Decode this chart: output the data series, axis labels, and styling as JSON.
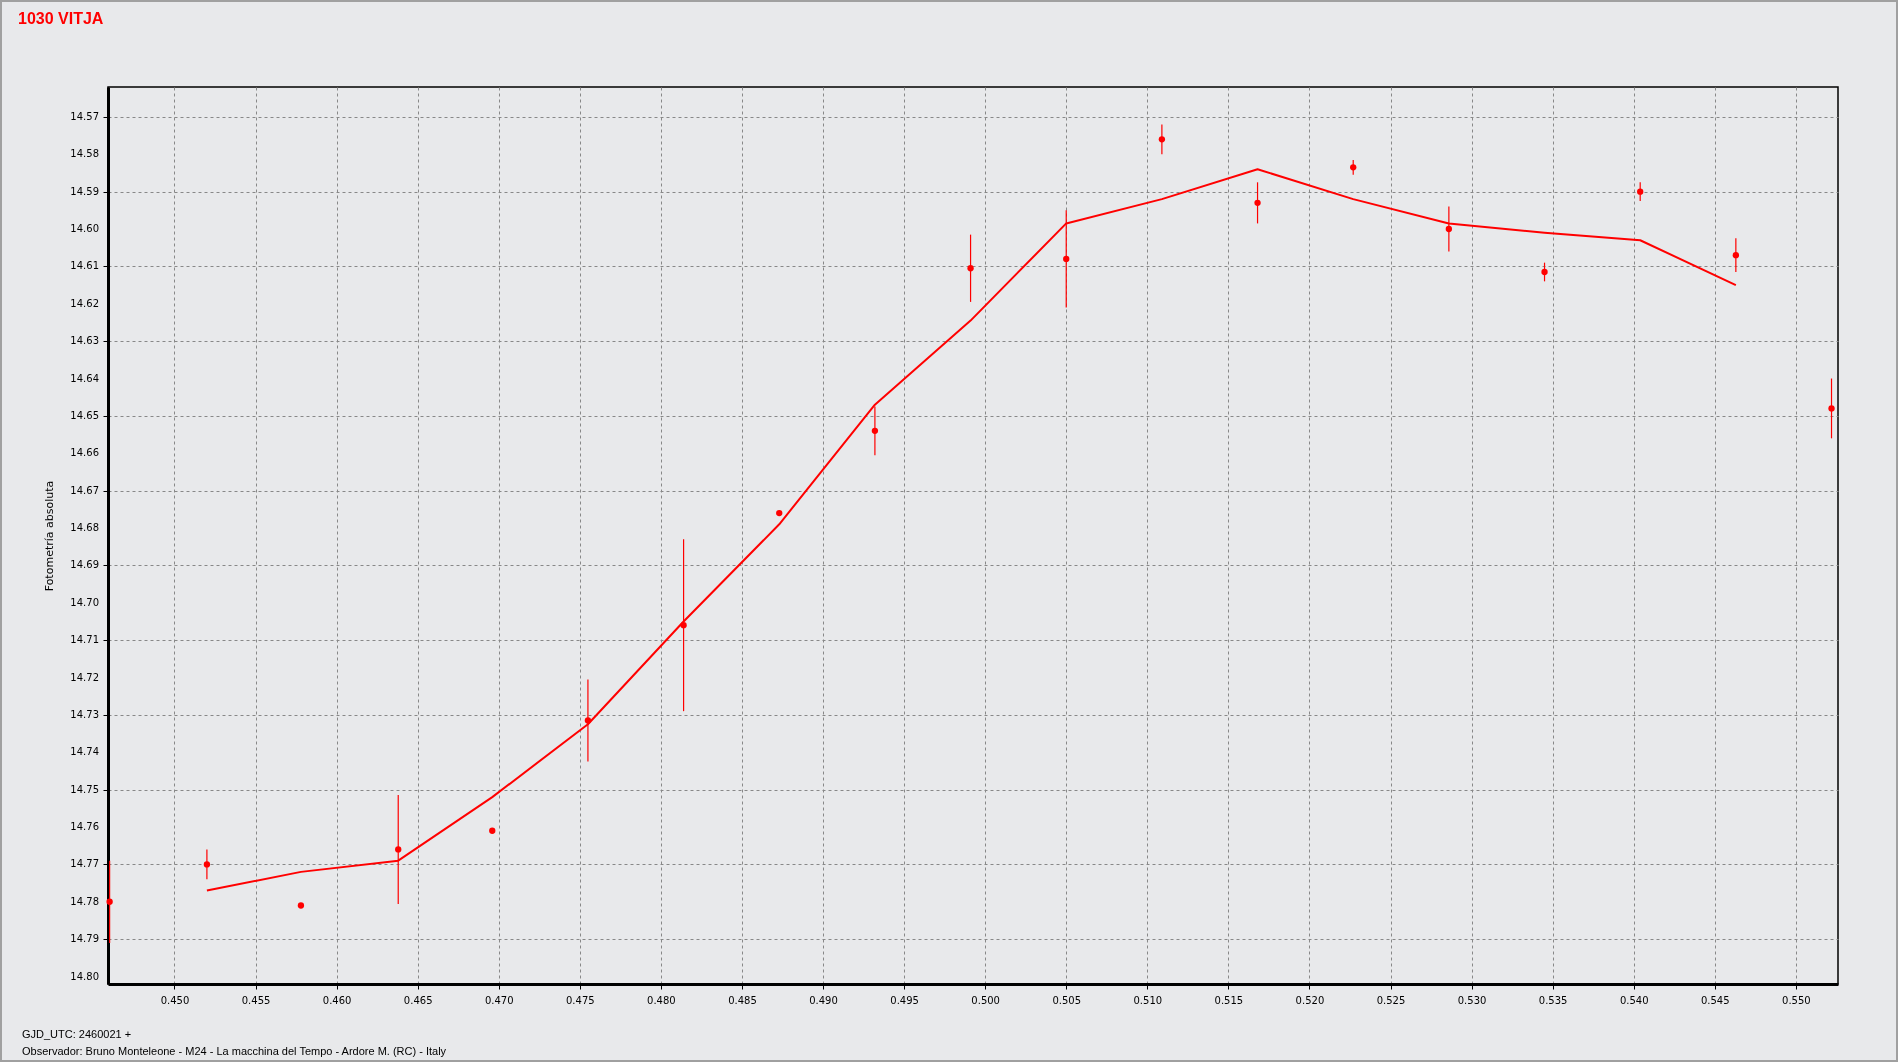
{
  "chart_data": {
    "type": "scatter",
    "title": "1030 VITJA",
    "ylabel": "Fotometría absoluta",
    "annotations": [
      "GJD_UTC: 2460021 +",
      "Observador: Bruno Monteleone - M24 - La macchina del Tempo - Ardore M. (RC) - Italy"
    ],
    "xlim": [
      0.4459,
      0.5526
    ],
    "ylim": [
      14.802,
      14.562
    ],
    "xticks": [
      {
        "value": 0.45,
        "label": "0.450"
      },
      {
        "value": 0.455,
        "label": "0.455"
      },
      {
        "value": 0.46,
        "label": "0.460"
      },
      {
        "value": 0.465,
        "label": "0.465"
      },
      {
        "value": 0.47,
        "label": "0.470"
      },
      {
        "value": 0.475,
        "label": "0.475"
      },
      {
        "value": 0.48,
        "label": "0.480"
      },
      {
        "value": 0.485,
        "label": "0.485"
      },
      {
        "value": 0.49,
        "label": "0.490"
      },
      {
        "value": 0.495,
        "label": "0.495"
      },
      {
        "value": 0.5,
        "label": "0.500"
      },
      {
        "value": 0.505,
        "label": "0.505"
      },
      {
        "value": 0.51,
        "label": "0.510"
      },
      {
        "value": 0.515,
        "label": "0.515"
      },
      {
        "value": 0.52,
        "label": "0.520"
      },
      {
        "value": 0.525,
        "label": "0.525"
      },
      {
        "value": 0.53,
        "label": "0.530"
      },
      {
        "value": 0.535,
        "label": "0.535"
      },
      {
        "value": 0.54,
        "label": "0.540"
      },
      {
        "value": 0.545,
        "label": "0.545"
      },
      {
        "value": 0.55,
        "label": "0.550"
      }
    ],
    "yticks": [
      14.57,
      14.58,
      14.59,
      {
        "value": 14.6,
        "label": "14.60"
      },
      14.61,
      14.62,
      14.63,
      14.64,
      14.65,
      14.66,
      14.67,
      14.68,
      14.69,
      {
        "value": 14.7,
        "label": "14.70"
      },
      14.71,
      14.72,
      14.73,
      14.74,
      14.75,
      14.76,
      14.77,
      14.78,
      14.79,
      {
        "value": 14.8,
        "label": "14.80"
      }
    ],
    "grid": true,
    "series": [
      {
        "type": "scatter",
        "color": "#ff0000",
        "marker": "circle",
        "x": [
          0.446,
          0.452,
          0.4578,
          0.4638,
          0.4696,
          0.4755,
          0.4814,
          0.4873,
          0.4932,
          0.4991,
          0.505,
          0.5109,
          0.5168,
          0.5227,
          0.5286,
          0.5345,
          0.5404,
          0.5463,
          0.5522
        ],
        "values": [
          14.78,
          14.77,
          14.781,
          14.766,
          14.761,
          14.7315,
          14.706,
          14.676,
          14.654,
          14.6105,
          14.608,
          14.576,
          14.593,
          14.5835,
          14.6,
          14.6115,
          14.59,
          14.607,
          14.648
        ],
        "errors": [
          0.011,
          0.004,
          null,
          0.0146,
          null,
          0.011,
          0.023,
          null,
          0.0065,
          0.009,
          0.013,
          0.004,
          0.0055,
          0.002,
          0.006,
          0.0025,
          0.0025,
          0.0045,
          0.008
        ]
      },
      {
        "type": "line",
        "color": "#ff0000",
        "x": [
          0.452,
          0.4578,
          0.4638,
          0.4696,
          0.4755,
          0.4814,
          0.4873,
          0.4932,
          0.4991,
          0.505,
          0.5109,
          0.5168,
          0.5227,
          0.5286,
          0.5345,
          0.5404,
          0.5463
        ],
        "values": [
          14.777,
          14.772,
          14.769,
          14.752,
          14.7325,
          14.705,
          14.679,
          14.647,
          14.6245,
          14.5985,
          14.592,
          14.584,
          14.592,
          14.5985,
          14.601,
          14.603,
          14.615
        ]
      }
    ]
  }
}
